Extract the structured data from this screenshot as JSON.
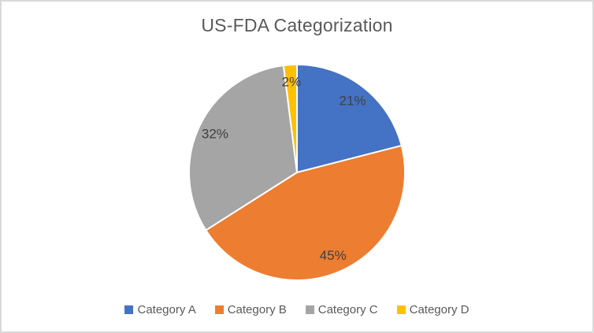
{
  "title": "US-FDA Categorization",
  "chart_data": {
    "type": "pie",
    "title": "US-FDA Categorization",
    "categories": [
      "Category A",
      "Category B",
      "Category C",
      "Category D"
    ],
    "values": [
      21,
      45,
      32,
      2
    ],
    "labels": [
      "21%",
      "45%",
      "32%",
      "2%"
    ],
    "colors": [
      "#4472C4",
      "#ED7D31",
      "#A5A5A5",
      "#FFC000"
    ],
    "start_angle_deg": 0,
    "direction": "clockwise",
    "slice_border_color": "#FFFFFF",
    "label_color": "#404040",
    "title_color": "#595959",
    "legend_text_color": "#595959",
    "legend_position": "bottom",
    "frame_border_color": "#D9D9D9",
    "background_color": "#FFFFFF"
  }
}
